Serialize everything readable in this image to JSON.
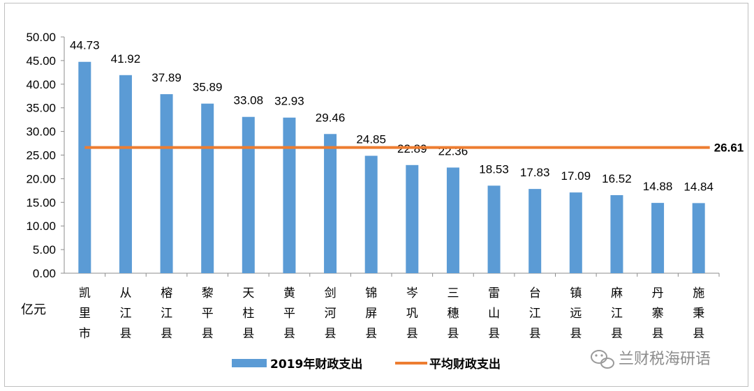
{
  "chart_data": {
    "type": "bar",
    "categories": [
      "凯里市",
      "从江县",
      "榕江县",
      "黎平县",
      "天柱县",
      "黄平县",
      "剑河县",
      "锦屏县",
      "岑巩县",
      "三穗县",
      "雷山县",
      "台江县",
      "镇远县",
      "麻江县",
      "丹寨县",
      "施秉县"
    ],
    "series": [
      {
        "name": "2019年财政支出",
        "type": "bar",
        "color": "#5b9bd5",
        "values": [
          44.73,
          41.92,
          37.89,
          35.89,
          33.08,
          32.93,
          29.46,
          24.85,
          22.89,
          22.36,
          18.53,
          17.83,
          17.09,
          16.52,
          14.88,
          14.84
        ],
        "labels": [
          "44.73",
          "41.92",
          "37.89",
          "35.89",
          "33.08",
          "32.93",
          "29.46",
          "24.85",
          "22.89",
          "22.36",
          "18.53",
          "17.83",
          "17.09",
          "16.52",
          "14.88",
          "14.84"
        ]
      },
      {
        "name": "平均财政支出",
        "type": "line",
        "color": "#ed7d31",
        "value": 26.61,
        "label": "26.61"
      }
    ],
    "ylabel": "亿元",
    "ylim": [
      0,
      50
    ],
    "yticks": [
      "0.00",
      "5.00",
      "10.00",
      "15.00",
      "20.00",
      "25.00",
      "30.00",
      "35.00",
      "40.00",
      "45.00",
      "50.00"
    ],
    "grid": false,
    "legend_position": "bottom"
  },
  "watermark": {
    "text": "兰财税海研语",
    "icon": "wechat-icon"
  }
}
